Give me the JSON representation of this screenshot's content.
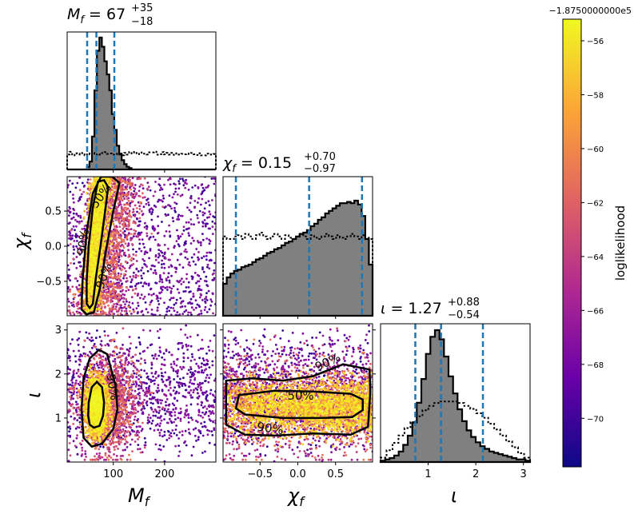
{
  "colorbar": {
    "offset_label": "−1.8750000000e5",
    "label": "loglikelihood",
    "ticks": [
      "−56",
      "−58",
      "−60",
      "−62",
      "−64",
      "−66",
      "−68",
      "−70"
    ],
    "tick_values": [
      -56,
      -58,
      -60,
      -62,
      -64,
      -66,
      -68,
      -70
    ],
    "range": [
      -71.8,
      -55.2
    ],
    "colors": [
      "#0d0887",
      "#6a00a8",
      "#b12a90",
      "#e16462",
      "#fca636",
      "#f0f921"
    ]
  },
  "axis_labels": {
    "mf": "M",
    "mf_sub": "f",
    "chi": "χ",
    "chi_sub": "f",
    "iota": "ι"
  },
  "titles": {
    "mf": {
      "lhs": "M",
      "sub": "f",
      "value": " = 67",
      "up": "+35",
      "down": "−18"
    },
    "chi": {
      "lhs": "χ",
      "sub": "f",
      "value": " = 0.15",
      "up": "+0.70",
      "down": "−0.97"
    },
    "iota": {
      "lhs": "ι",
      "sub": "",
      "value": " = 1.27",
      "up": "+0.88",
      "down": "−0.54"
    }
  },
  "ticks": {
    "mf_x": [
      "100",
      "200"
    ],
    "mf_x_values": [
      100,
      200
    ],
    "chi_x": [
      "−0.5",
      "0.0",
      "0.5"
    ],
    "chi_x_values": [
      -0.5,
      0.0,
      0.5
    ],
    "iota_x": [
      "1",
      "2",
      "3"
    ],
    "iota_x_values": [
      1,
      2,
      3
    ],
    "chi_y": [
      "0.5",
      "0.0",
      "−0.5"
    ],
    "chi_y_values": [
      0.5,
      0.0,
      -0.5
    ],
    "iota_y": [
      "3",
      "2",
      "1"
    ],
    "iota_y_values": [
      3,
      2,
      1
    ]
  },
  "contour_labels": {
    "fifty": "50%",
    "ninety": "90%"
  },
  "chart_data": {
    "type": "scatter",
    "parameters": [
      "M_f",
      "chi_f",
      "iota"
    ],
    "ranges": {
      "M_f": [
        10,
        300
      ],
      "chi_f": [
        -0.99,
        0.99
      ],
      "iota": [
        0,
        3.14
      ]
    },
    "credible_intervals": {
      "M_f": {
        "median": 67,
        "lower": 49,
        "upper": 102
      },
      "chi_f": {
        "median": 0.15,
        "lower": -0.82,
        "upper": 0.85
      },
      "iota": {
        "median": 1.27,
        "lower": 0.73,
        "upper": 2.15
      }
    },
    "marginals": {
      "M_f": {
        "bins": [
          10,
          300
        ],
        "posterior": [
          0,
          0,
          0,
          0,
          0,
          0,
          0,
          0,
          0.02,
          0.06,
          0.25,
          0.6,
          0.9,
          1.0,
          0.93,
          0.82,
          0.72,
          0.6,
          0.42,
          0.3,
          0.18,
          0.12,
          0.07,
          0.04,
          0.02,
          0.01,
          0,
          0,
          0,
          0,
          0,
          0,
          0,
          0,
          0,
          0,
          0,
          0,
          0,
          0,
          0,
          0,
          0,
          0,
          0,
          0,
          0,
          0,
          0,
          0,
          0,
          0,
          0,
          0,
          0,
          0,
          0,
          0,
          0,
          0
        ],
        "prior_level": 0.12
      },
      "chi_f": {
        "posterior": [
          0.25,
          0.3,
          0.33,
          0.35,
          0.36,
          0.38,
          0.39,
          0.4,
          0.42,
          0.44,
          0.45,
          0.47,
          0.49,
          0.5,
          0.52,
          0.53,
          0.55,
          0.57,
          0.58,
          0.6,
          0.62,
          0.64,
          0.65,
          0.67,
          0.7,
          0.72,
          0.75,
          0.77,
          0.8,
          0.82,
          0.84,
          0.86,
          0.88,
          0.88,
          0.89,
          0.88,
          0.9,
          0.87,
          0.78,
          0.6,
          0.4
        ],
        "prior": [
          0.62,
          0.6,
          0.6,
          0.62,
          0.63,
          0.6,
          0.64,
          0.62,
          0.6,
          0.63,
          0.65,
          0.62,
          0.6,
          0.62,
          0.64,
          0.62,
          0.6,
          0.63,
          0.61,
          0.6,
          0.62,
          0.64,
          0.62,
          0.6,
          0.63,
          0.61,
          0.6,
          0.62,
          0.64,
          0.62,
          0.6,
          0.63,
          0.61,
          0.6,
          0.62,
          0.64,
          0.62,
          0.6,
          0.63,
          0.61,
          0.6
        ]
      },
      "iota": {
        "posterior": [
          0.01,
          0.02,
          0.03,
          0.05,
          0.08,
          0.13,
          0.2,
          0.3,
          0.45,
          0.63,
          0.82,
          0.95,
          1.0,
          0.93,
          0.8,
          0.65,
          0.52,
          0.4,
          0.31,
          0.24,
          0.19,
          0.15,
          0.12,
          0.1,
          0.08,
          0.07,
          0.06,
          0.05,
          0.04,
          0.03,
          0.02,
          0.02,
          0.01
        ],
        "prior": [
          0.03,
          0.08,
          0.13,
          0.18,
          0.23,
          0.27,
          0.31,
          0.35,
          0.38,
          0.4,
          0.41,
          0.41,
          0.41,
          0.4,
          0.38,
          0.36,
          0.33,
          0.3,
          0.26,
          0.22,
          0.18,
          0.14,
          0.1,
          0.06,
          0.03
        ]
      }
    }
  }
}
